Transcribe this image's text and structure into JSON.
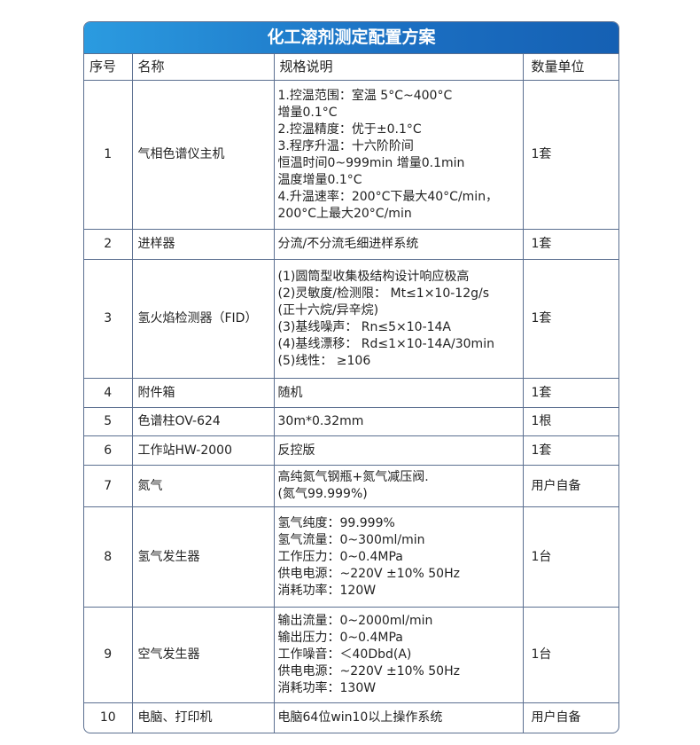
{
  "title": "化工溶剂测定配置方案",
  "headers": [
    "序号",
    "名称",
    "规格说明",
    "数量单位"
  ],
  "rows": [
    {
      "no": "1",
      "name": "气相色谱仪主机",
      "spec": "1.控温范围：室温 5°C~400°C\n增量0.1°C\n2.控温精度：优于±0.1°C\n3.程序升温：十六阶阶间\n恒温时间0~999min 增量0.1min\n温度增量0.1°C\n4.升温速率：200°C下最大40°C/min，\n200°C上最大20°C/min",
      "qty": "1套"
    },
    {
      "no": "2",
      "name": "进样器",
      "spec": "分流/不分流毛细进样系统",
      "qty": "1套"
    },
    {
      "no": "3",
      "name": "氢火焰检测器（FID）",
      "spec": "(1)圆筒型收集极结构设计响应极高\n(2)灵敏度/检测限： Mt≤1×10-12g/s\n(正十六烷/异辛烷)\n(3)基线噪声： Rn≤5×10-14A\n(4)基线漂移： Rd≤1×10-14A/30min\n(5)线性： ≥106",
      "qty": "1套"
    },
    {
      "no": "4",
      "name": "附件箱",
      "spec": "随机",
      "qty": "1套"
    },
    {
      "no": "5",
      "name": "色谱柱OV-624",
      "spec": "30m*0.32mm",
      "qty": "1根"
    },
    {
      "no": "6",
      "name": "工作站HW-2000",
      "spec": "反控版",
      "qty": "1套"
    },
    {
      "no": "7",
      "name": "氮气",
      "spec": "高纯氮气钢瓶+氮气减压阀.\n(氮气99.999%)",
      "qty": "用户自备"
    },
    {
      "no": "8",
      "name": "氢气发生器",
      "spec": "氢气纯度：99.999%\n氢气流量：0~300ml/min\n工作压力：0~0.4MPa\n供电电源：~220V ±10% 50Hz\n消耗功率：120W",
      "qty": "1台"
    },
    {
      "no": "9",
      "name": "空气发生器",
      "spec": "输出流量：0~2000ml/min\n输出压力：0~0.4MPa\n工作噪音：＜40Dbd(A)\n供电电源：~220V ±10% 50Hz\n消耗功率：130W",
      "qty": "1台"
    },
    {
      "no": "10",
      "name": "电脑、打印机",
      "spec": "电脑64位win10以上操作系统",
      "qty": "用户自备"
    }
  ]
}
